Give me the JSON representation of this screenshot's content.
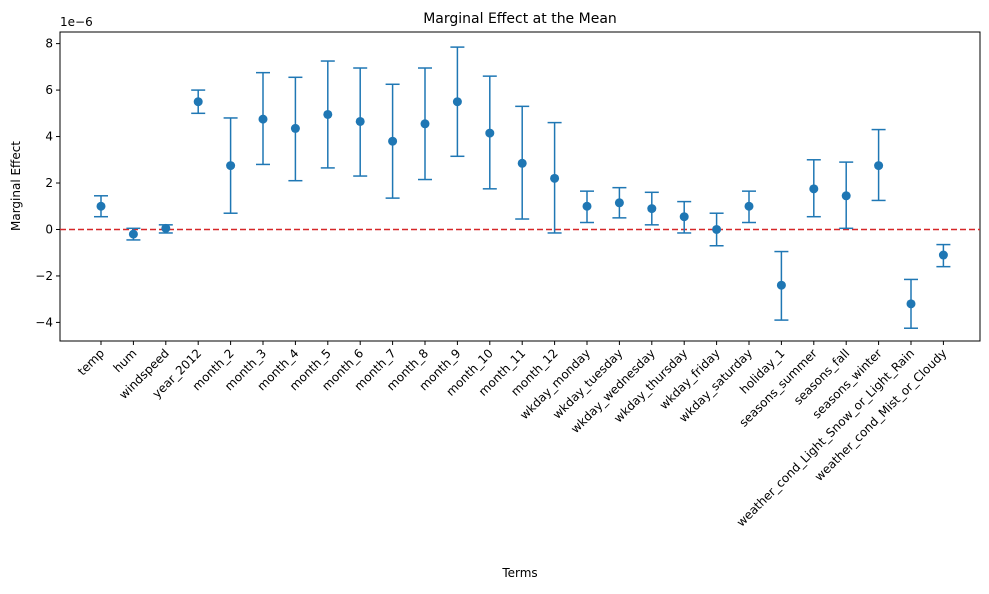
{
  "chart_data": {
    "type": "scatter",
    "title": "Marginal Effect at the Mean",
    "xlabel": "Terms",
    "ylabel": "Marginal Effect",
    "y_scale_label": "1e−6",
    "ylim": [
      -4.8,
      8.5
    ],
    "yticks": [
      -4,
      -2,
      0,
      2,
      4,
      6,
      8
    ],
    "ytick_labels": [
      "−4",
      "−2",
      "0",
      "2",
      "4",
      "6",
      "8"
    ],
    "grid": false,
    "reference_line": {
      "y": 0,
      "style": "dashed",
      "color": "#d62728"
    },
    "marker_color": "#1f77b4",
    "categories": [
      "temp",
      "hum",
      "windspeed",
      "year_2012",
      "month_2",
      "month_3",
      "month_4",
      "month_5",
      "month_6",
      "month_7",
      "month_8",
      "month_9",
      "month_10",
      "month_11",
      "month_12",
      "wkday_monday",
      "wkday_tuesday",
      "wkday_wednesday",
      "wkday_thursday",
      "wkday_friday",
      "wkday_saturday",
      "holiday_1",
      "seasons_summer",
      "seasons_fall",
      "seasons_winter",
      "weather_cond_Light_Snow_or_Light_Rain",
      "weather_cond_Mist_or_Cloudy"
    ],
    "values": [
      1.0,
      -0.2,
      0.05,
      5.5,
      2.75,
      4.75,
      4.35,
      4.95,
      4.65,
      3.8,
      4.55,
      5.5,
      4.15,
      2.85,
      2.2,
      1.0,
      1.15,
      0.9,
      0.55,
      0.0,
      1.0,
      -2.4,
      1.75,
      1.45,
      2.75,
      -3.2,
      -1.1
    ],
    "lower": [
      0.55,
      -0.45,
      -0.15,
      5.0,
      0.7,
      2.8,
      2.1,
      2.65,
      2.3,
      1.35,
      2.15,
      3.15,
      1.75,
      0.45,
      -0.15,
      0.3,
      0.5,
      0.2,
      -0.15,
      -0.7,
      0.3,
      -3.9,
      0.55,
      0.05,
      1.25,
      -4.25,
      -1.6
    ],
    "upper": [
      1.45,
      0.05,
      0.2,
      6.0,
      4.8,
      6.75,
      6.55,
      7.25,
      6.95,
      6.25,
      6.95,
      7.85,
      6.6,
      5.3,
      4.6,
      1.65,
      1.8,
      1.6,
      1.2,
      0.7,
      1.65,
      -0.95,
      3.0,
      2.9,
      4.3,
      -2.15,
      -0.65
    ]
  }
}
